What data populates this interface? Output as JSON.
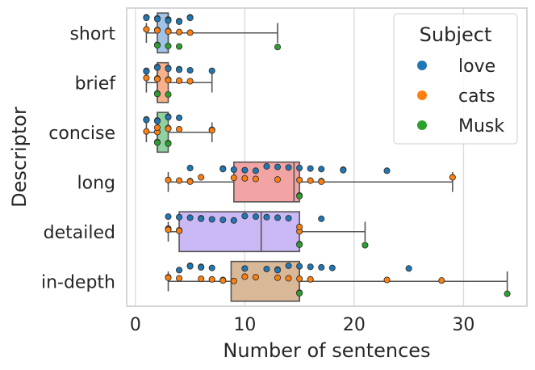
{
  "chart_data": {
    "type": "box+strip",
    "orientation": "horizontal",
    "xlabel": "Number of sentences",
    "ylabel": "Descriptor",
    "xlim": [
      -0.8,
      35.8
    ],
    "xticks": [
      "0",
      "10",
      "20",
      "30"
    ],
    "grid": "vertical",
    "legend": {
      "title": "Subject",
      "placement": "top-right",
      "entries": [
        "love",
        "cats",
        "Musk"
      ]
    },
    "series_colors": {
      "love": "#1f77b4",
      "cats": "#ff7f0e",
      "Musk": "#2ca02c"
    },
    "categories": [
      "short",
      "brief",
      "concise",
      "long",
      "detailed",
      "in-depth"
    ],
    "box_colors": [
      "#a1c3e6",
      "#f7b08c",
      "#8fd1a1",
      "#f2a4a4",
      "#cbb9f6",
      "#d9b897"
    ],
    "boxes": [
      {
        "q1": 2,
        "median": 3,
        "q3": 3,
        "whislo": 1,
        "whishi": 13
      },
      {
        "q1": 2,
        "median": 2,
        "q3": 3,
        "whislo": 1,
        "whishi": 7
      },
      {
        "q1": 2,
        "median": 2,
        "q3": 3,
        "whislo": 1,
        "whishi": 7
      },
      {
        "q1": 9,
        "median": 14.5,
        "q3": 15,
        "whislo": 3,
        "whishi": 29
      },
      {
        "q1": 4,
        "median": 11.5,
        "q3": 15,
        "whislo": 3,
        "whishi": 21
      },
      {
        "q1": 8.75,
        "median": 15,
        "q3": 15,
        "whislo": 3,
        "whishi": 34
      }
    ],
    "points": {
      "short": {
        "love": [
          1,
          1,
          2,
          2,
          3,
          3,
          3,
          4,
          4,
          5,
          5
        ],
        "cats": [
          1,
          2,
          2,
          3,
          3,
          4,
          5
        ],
        "Musk": [
          2,
          2,
          3,
          4,
          13
        ]
      },
      "brief": {
        "love": [
          1,
          1,
          2,
          2,
          3,
          3,
          4,
          4,
          5,
          7
        ],
        "cats": [
          1,
          2,
          2,
          3,
          3,
          4,
          5
        ],
        "Musk": [
          2,
          2,
          3
        ]
      },
      "concise": {
        "love": [
          1,
          1,
          2,
          2,
          3,
          3,
          4
        ],
        "cats": [
          1,
          2,
          2,
          3,
          3,
          4,
          7,
          7
        ],
        "Musk": [
          2,
          2,
          3,
          3
        ]
      },
      "long": {
        "love": [
          5,
          8,
          8,
          9,
          10,
          11,
          12,
          13,
          14,
          15,
          16,
          17,
          19,
          19,
          23
        ],
        "cats": [
          3,
          4,
          5,
          5,
          6,
          9,
          10,
          11,
          13,
          15,
          16,
          17,
          17,
          29
        ],
        "Musk": [
          15,
          15
        ]
      },
      "detailed": {
        "love": [
          3,
          4,
          5,
          6,
          6,
          7,
          8,
          9,
          10,
          11,
          12,
          13,
          14,
          17
        ],
        "cats": [
          3,
          3,
          3,
          4,
          4,
          15,
          15
        ],
        "Musk": [
          15,
          15,
          21
        ]
      },
      "in-depth": {
        "love": [
          4,
          5,
          5,
          6,
          6,
          7,
          10,
          12,
          13,
          13,
          14,
          15,
          16,
          17,
          18,
          25
        ],
        "cats": [
          3,
          3,
          4,
          6,
          7,
          8,
          8,
          9,
          10,
          11,
          13,
          14,
          15,
          16,
          23,
          28
        ],
        "Musk": [
          15,
          15,
          34
        ]
      }
    }
  }
}
